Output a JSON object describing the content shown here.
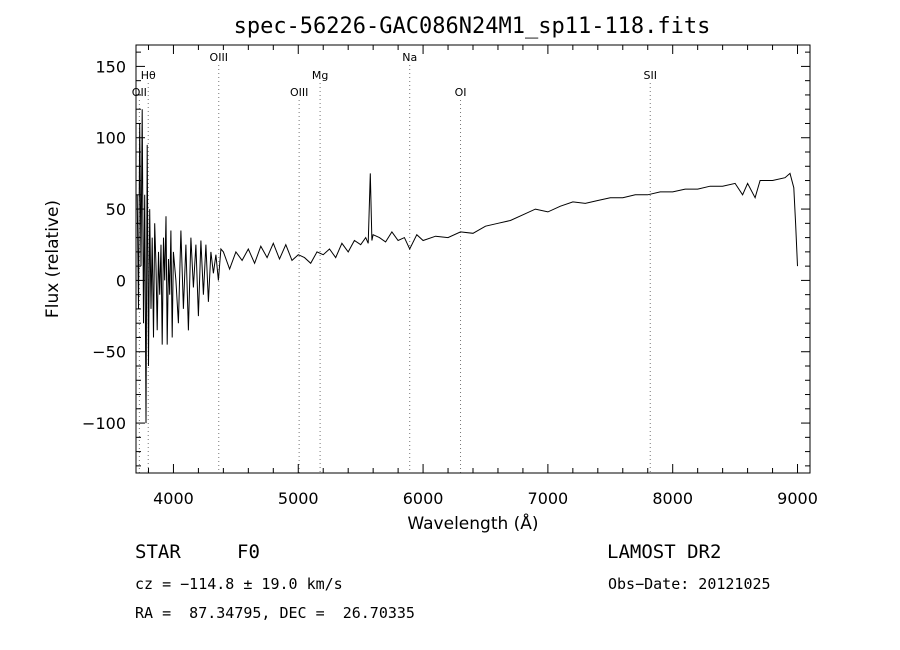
{
  "chart_data": {
    "type": "line",
    "title": "spec-56226-GAC086N24M1_sp11-118.fits",
    "xlabel": "Wavelength (Å)",
    "ylabel": "Flux (relative)",
    "xlim": [
      3700,
      9100
    ],
    "ylim": [
      -135,
      165
    ],
    "xticks": [
      4000,
      5000,
      6000,
      7000,
      8000,
      9000
    ],
    "xtick_labels": [
      "4000",
      "5000",
      "6000",
      "7000",
      "8000",
      "9000"
    ],
    "yticks": [
      -100,
      -50,
      0,
      50,
      100,
      150
    ],
    "ytick_labels": [
      "−100",
      "−50",
      "0",
      "50",
      "100",
      "150"
    ],
    "grid": false,
    "lines": [
      {
        "label": "OII",
        "x": 3727,
        "row": 3
      },
      {
        "label": "Hθ",
        "x": 3798,
        "row": 1
      },
      {
        "label": "OIII",
        "x": 4363,
        "row": 0
      },
      {
        "label": "OIII",
        "x": 5007,
        "row": 3
      },
      {
        "label": "Mg",
        "x": 5175,
        "row": 1
      },
      {
        "label": "Na",
        "x": 5893,
        "row": 0
      },
      {
        "label": "OI",
        "x": 6300,
        "row": 3
      },
      {
        "label": "SII",
        "x": 7820,
        "row": 1
      }
    ],
    "series": [
      {
        "x": [
          3710,
          3720,
          3730,
          3740,
          3750,
          3760,
          3770,
          3780,
          3790,
          3800,
          3810,
          3820,
          3830,
          3840,
          3850,
          3860,
          3870,
          3880,
          3890,
          3900,
          3910,
          3920,
          3930,
          3940,
          3950,
          3960,
          3970,
          3980,
          3990,
          4000,
          4020,
          4040,
          4060,
          4080,
          4100,
          4120,
          4140,
          4160,
          4180,
          4200,
          4220,
          4240,
          4260,
          4280,
          4300,
          4320,
          4340,
          4360,
          4380,
          4400,
          4450,
          4500,
          4550,
          4600,
          4650,
          4700,
          4750,
          4800,
          4850,
          4900,
          4950,
          5000,
          5050,
          5100,
          5150,
          5200,
          5250,
          5300,
          5350,
          5400,
          5450,
          5500,
          5540,
          5560,
          5577,
          5590,
          5600,
          5650,
          5700,
          5750,
          5800,
          5850,
          5893,
          5950,
          6000,
          6100,
          6200,
          6300,
          6400,
          6500,
          6600,
          6700,
          6800,
          6900,
          7000,
          7100,
          7200,
          7300,
          7400,
          7500,
          7600,
          7700,
          7800,
          7900,
          8000,
          8100,
          8200,
          8300,
          8400,
          8500,
          8560,
          8600,
          8660,
          8700,
          8800,
          8900,
          8940,
          8970,
          8985,
          9000
        ],
        "y": [
          60,
          -20,
          110,
          10,
          120,
          -30,
          60,
          -100,
          95,
          -60,
          50,
          -20,
          30,
          -40,
          40,
          10,
          -35,
          20,
          -10,
          25,
          -45,
          30,
          0,
          45,
          -45,
          15,
          -10,
          35,
          -40,
          20,
          0,
          -30,
          35,
          -20,
          25,
          -35,
          30,
          -5,
          25,
          -25,
          28,
          -10,
          25,
          -15,
          20,
          5,
          18,
          0,
          22,
          20,
          8,
          20,
          14,
          22,
          12,
          24,
          16,
          26,
          15,
          25,
          14,
          18,
          16,
          12,
          20,
          18,
          22,
          16,
          26,
          20,
          28,
          25,
          30,
          26,
          75,
          28,
          32,
          30,
          27,
          34,
          28,
          30,
          22,
          32,
          28,
          31,
          30,
          34,
          33,
          38,
          40,
          42,
          46,
          50,
          48,
          52,
          55,
          54,
          56,
          58,
          58,
          60,
          60,
          62,
          62,
          64,
          64,
          66,
          66,
          68,
          60,
          68,
          58,
          70,
          70,
          72,
          75,
          65,
          40,
          10
        ]
      }
    ]
  },
  "info": {
    "object_class": "STAR",
    "subclass": "F0",
    "survey": "LAMOST DR2",
    "redshift": "cz = −114.8 ± 19.0 km/s",
    "obs_date": "Obs−Date: 20121025",
    "coords": "RA =  87.34795, DEC =  26.70335"
  }
}
